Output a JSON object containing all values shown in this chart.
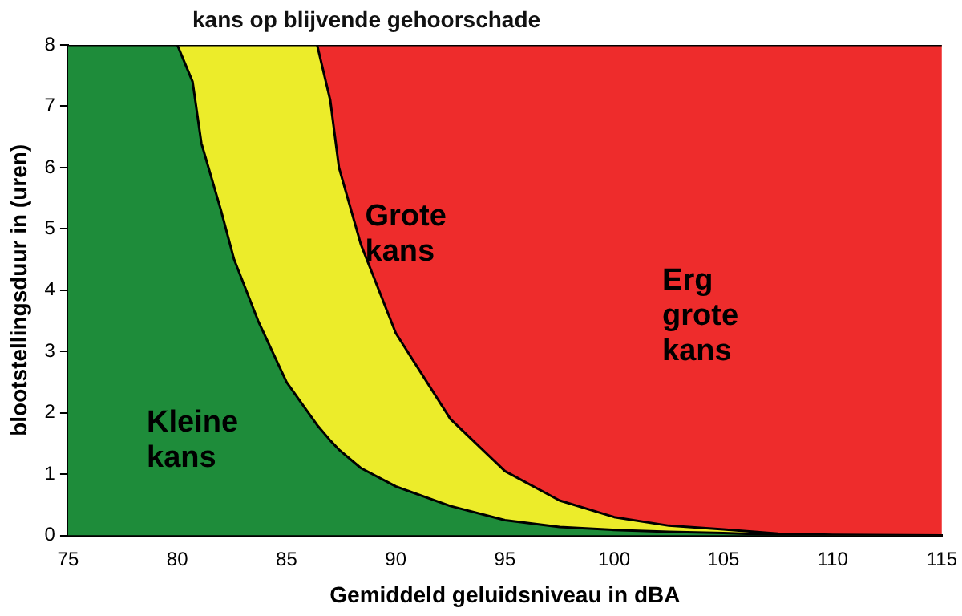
{
  "chart_data": {
    "type": "area",
    "stacked": true,
    "title": "kans op blijvende gehoorschade",
    "xlabel": "Gemiddeld geluidsniveau in dBA",
    "ylabel": "blootstellingsduur in (uren)",
    "xlim": [
      75,
      115
    ],
    "xticks": [
      75,
      80,
      85,
      90,
      95,
      100,
      105,
      110,
      115
    ],
    "ylim": [
      0,
      8
    ],
    "yticks": [
      0,
      1,
      2,
      3,
      4,
      5,
      6,
      7,
      8
    ],
    "grid": false,
    "legend": false,
    "x": [
      75,
      80,
      80.7,
      81.1,
      82,
      82.6,
      83.7,
      85,
      86.4,
      87,
      87.4,
      88.4,
      90,
      92.5,
      95,
      97.5,
      100,
      102.5,
      105,
      107.5,
      110,
      115
    ],
    "series": [
      {
        "name": "Kleine kans",
        "color": "#1e8c3a",
        "values": [
          8,
          8,
          7.4,
          6.4,
          5.3,
          4.5,
          3.5,
          2.5,
          1.8,
          1.55,
          1.4,
          1.1,
          0.8,
          0.48,
          0.25,
          0.14,
          0.09,
          0.06,
          0.04,
          0.01,
          0,
          0
        ]
      },
      {
        "name": "Grote kans",
        "color": "#ecec2a",
        "values": [
          null,
          0,
          0.6,
          1.6,
          2.7,
          3.5,
          4.5,
          5.5,
          6.2,
          5.55,
          4.6,
          3.65,
          2.5,
          1.42,
          0.8,
          0.43,
          0.21,
          0.1,
          0.06,
          0.02,
          0.01,
          0
        ]
      },
      {
        "name": "Erg grote kans",
        "color": "#ee2c2c",
        "values": [
          null,
          null,
          null,
          null,
          null,
          null,
          null,
          null,
          0,
          0.9,
          2,
          3.25,
          4.7,
          6.1,
          6.95,
          7.43,
          7.7,
          7.84,
          7.9,
          7.97,
          7.99,
          8
        ]
      }
    ]
  }
}
